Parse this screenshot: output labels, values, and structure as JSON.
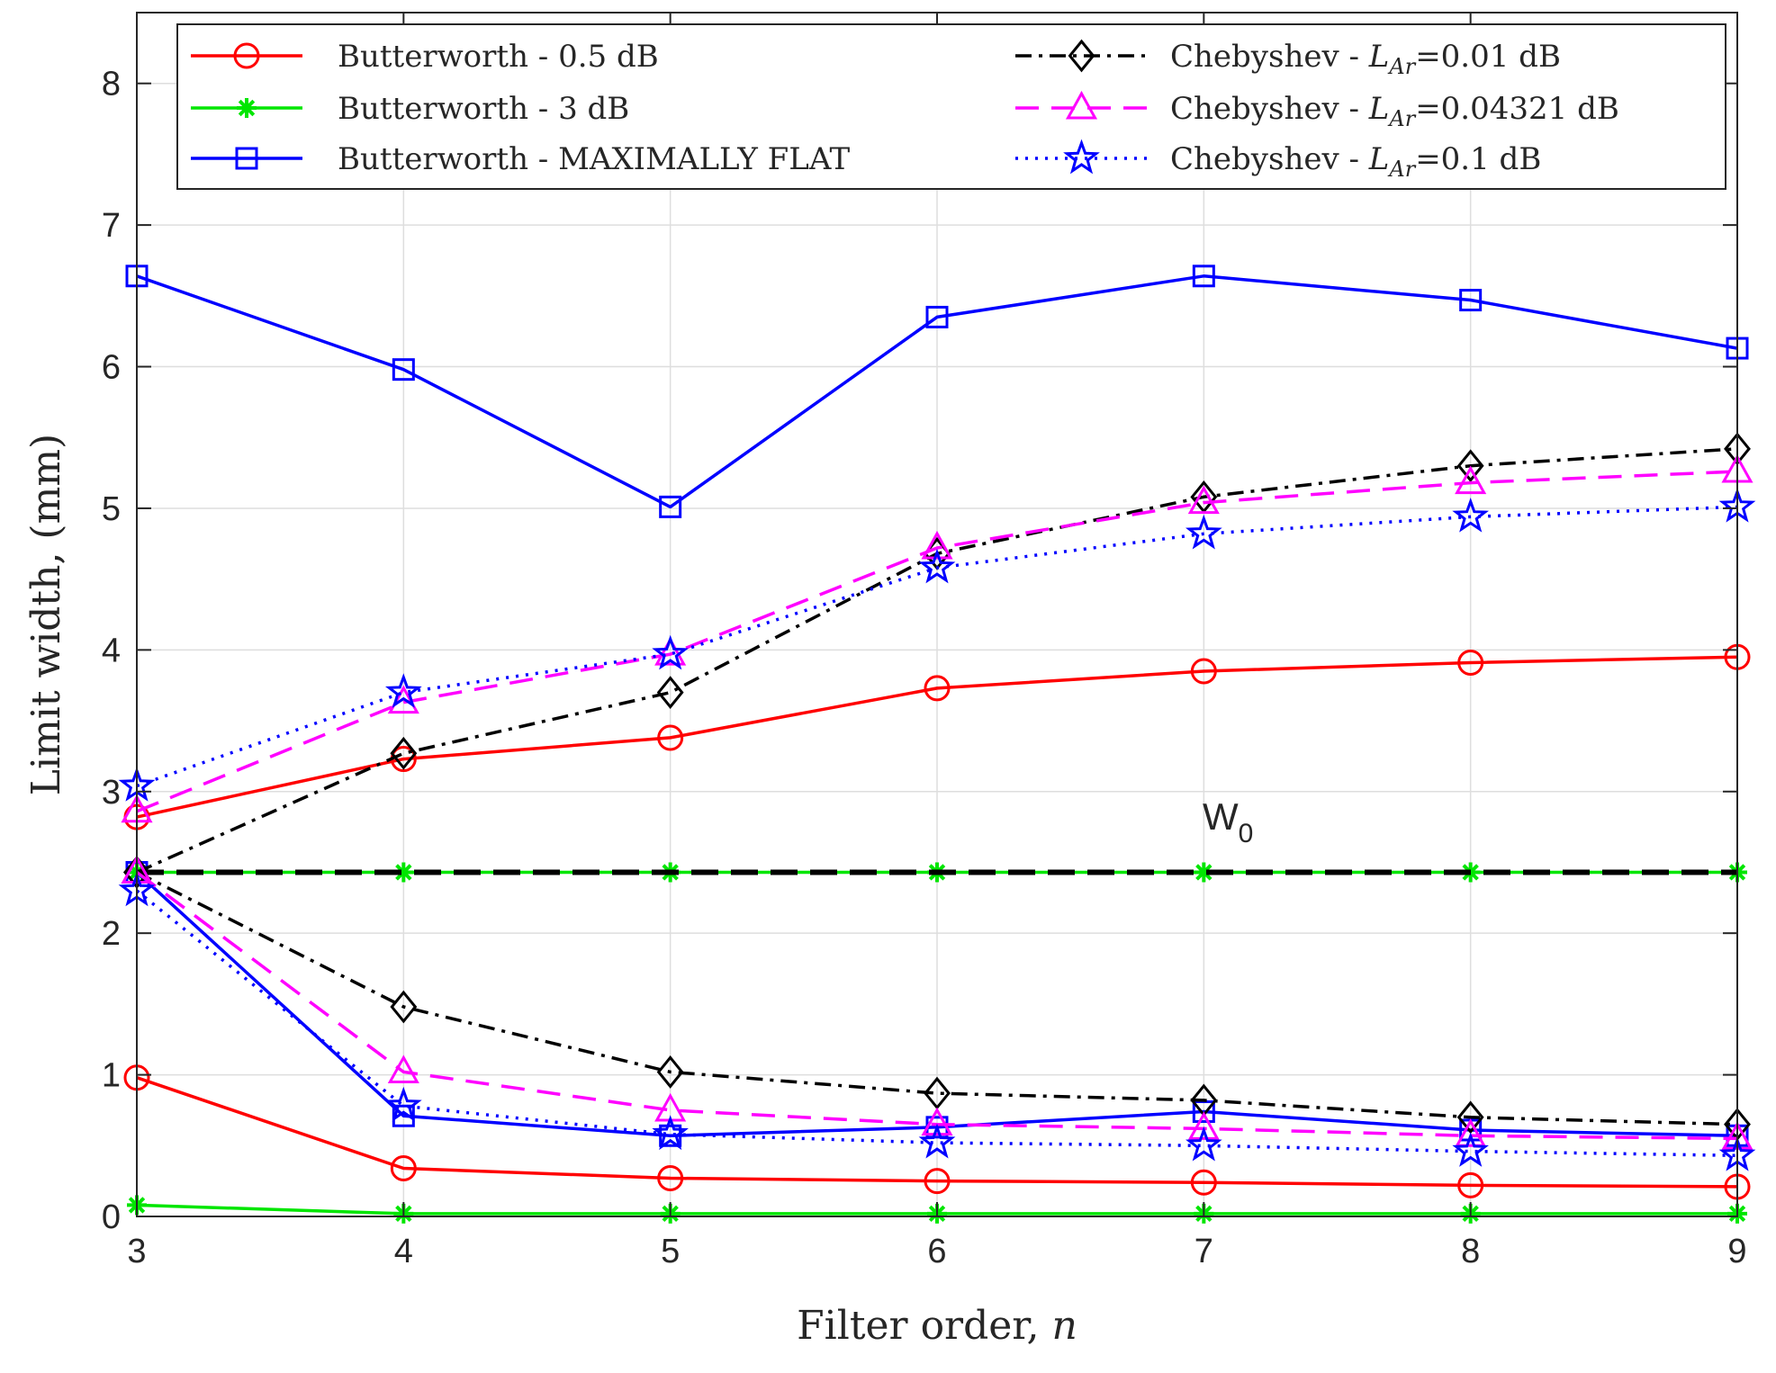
{
  "chart_data": {
    "type": "line",
    "xlabel_text": "Filter order, ",
    "xlabel_var": "n",
    "ylabel": "Limit width, (mm)",
    "xlim": [
      3,
      9
    ],
    "ylim": [
      0,
      8.5
    ],
    "x": [
      3,
      4,
      5,
      6,
      7,
      8,
      9
    ],
    "x_ticks": [
      "3",
      "4",
      "5",
      "6",
      "7",
      "8",
      "9"
    ],
    "y_ticks": [
      0,
      1,
      2,
      3,
      4,
      5,
      6,
      7,
      8
    ],
    "y_tick_labels": [
      "0",
      "1",
      "2",
      "3",
      "4",
      "5",
      "6",
      "7",
      "8"
    ],
    "grid": true,
    "legend_position": "top",
    "annotation": {
      "text": "W",
      "sub": "0",
      "x": 7.0,
      "y": 2.85
    },
    "reference_line": {
      "y": 2.43,
      "color": "#000000",
      "style": "dashed"
    },
    "series": [
      {
        "name": "Butterworth - 0.5 dB",
        "color": "#ff0000",
        "dash": "",
        "marker": "circle",
        "values": [
          2.82,
          3.23,
          3.38,
          3.73,
          3.85,
          3.91,
          3.95
        ]
      },
      {
        "name": "Butterworth - 0.5 dB",
        "color": "#ff0000",
        "dash": "",
        "marker": "circle",
        "legend": false,
        "values": [
          0.98,
          0.34,
          0.27,
          0.25,
          0.24,
          0.22,
          0.21
        ]
      },
      {
        "name": "Butterworth - 3 dB",
        "color": "#00e600",
        "dash": "",
        "marker": "asterisk",
        "values": [
          2.43,
          2.43,
          2.43,
          2.43,
          2.43,
          2.43,
          2.43
        ]
      },
      {
        "name": "Butterworth - 3 dB",
        "color": "#00e600",
        "dash": "",
        "marker": "asterisk",
        "legend": false,
        "values": [
          0.08,
          0.02,
          0.02,
          0.02,
          0.02,
          0.02,
          0.02
        ]
      },
      {
        "name": "Butterworth - MAXIMALLY FLAT",
        "color": "#0000ff",
        "dash": "",
        "marker": "square",
        "values": [
          6.64,
          5.98,
          5.01,
          6.35,
          6.64,
          6.47,
          6.13
        ]
      },
      {
        "name": "Butterworth - MAXIMALLY FLAT",
        "color": "#0000ff",
        "dash": "",
        "marker": "square",
        "legend": false,
        "values": [
          2.43,
          0.71,
          0.57,
          0.63,
          0.74,
          0.61,
          0.57
        ]
      },
      {
        "name_prefix": "Chebyshev - ",
        "name_var": "L",
        "name_sub": "Ar",
        "name_suffix": "=0.01 dB",
        "color": "#000000",
        "dash": "18 8 4 8",
        "marker": "diamond",
        "values": [
          2.43,
          3.27,
          3.7,
          4.68,
          5.08,
          5.3,
          5.42
        ]
      },
      {
        "color": "#000000",
        "dash": "18 8 4 8",
        "marker": "diamond",
        "legend": false,
        "values": [
          2.43,
          1.48,
          1.02,
          0.87,
          0.82,
          0.7,
          0.65
        ]
      },
      {
        "name_prefix": "Chebyshev - ",
        "name_var": "L",
        "name_sub": "Ar",
        "name_suffix": "=0.04321 dB",
        "color": "#ff00ff",
        "dash": "26 14",
        "marker": "triangle",
        "values": [
          2.86,
          3.63,
          3.97,
          4.72,
          5.04,
          5.18,
          5.26
        ]
      },
      {
        "color": "#ff00ff",
        "dash": "26 14",
        "marker": "triangle",
        "legend": false,
        "values": [
          2.43,
          1.02,
          0.75,
          0.65,
          0.62,
          0.57,
          0.55
        ]
      },
      {
        "name_prefix": "Chebyshev - ",
        "name_var": "L",
        "name_sub": "Ar",
        "name_suffix": "=0.1 dB",
        "color": "#0000ff",
        "dash": "3 8",
        "marker": "star",
        "values": [
          3.04,
          3.7,
          3.97,
          4.58,
          4.82,
          4.94,
          5.01
        ]
      },
      {
        "color": "#0000ff",
        "dash": "3 8",
        "marker": "star",
        "legend": false,
        "values": [
          2.3,
          0.78,
          0.58,
          0.52,
          0.5,
          0.46,
          0.43
        ]
      }
    ]
  }
}
